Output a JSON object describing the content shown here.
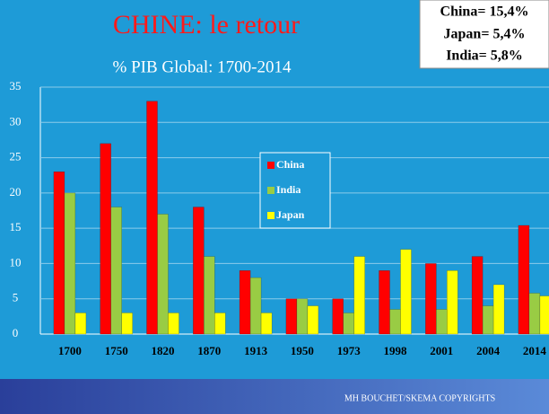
{
  "chart_data": {
    "type": "bar",
    "title": "CHINE: le retour",
    "subtitle": "%  PIB Global: 1700-2014",
    "annotations": [
      "China= 15,4%",
      "Japan= 5,4%",
      "India= 5,8%"
    ],
    "footer": "MH BOUCHET/SKEMA COPYRIGHTS",
    "categories": [
      "1700",
      "1750",
      "1820",
      "1870",
      "1913",
      "1950",
      "1973",
      "1998",
      "2001",
      "2004",
      "2014"
    ],
    "series": [
      {
        "name": "China",
        "color": "#ff0000",
        "values": [
          23,
          27,
          33,
          18,
          9,
          5,
          5,
          9,
          10,
          11,
          15.4
        ]
      },
      {
        "name": "India",
        "color": "#99cc44",
        "values": [
          20,
          18,
          17,
          11,
          8,
          5,
          3,
          3.5,
          3.5,
          4,
          5.8
        ]
      },
      {
        "name": "Japan",
        "color": "#ffff00",
        "values": [
          3,
          3,
          3,
          3,
          3,
          4,
          11,
          12,
          9,
          7,
          5.4
        ]
      }
    ],
    "ylim": [
      0,
      35
    ],
    "yticks": [
      0,
      5,
      10,
      15,
      20,
      25,
      30,
      35
    ],
    "grid": true,
    "legend": "center"
  }
}
